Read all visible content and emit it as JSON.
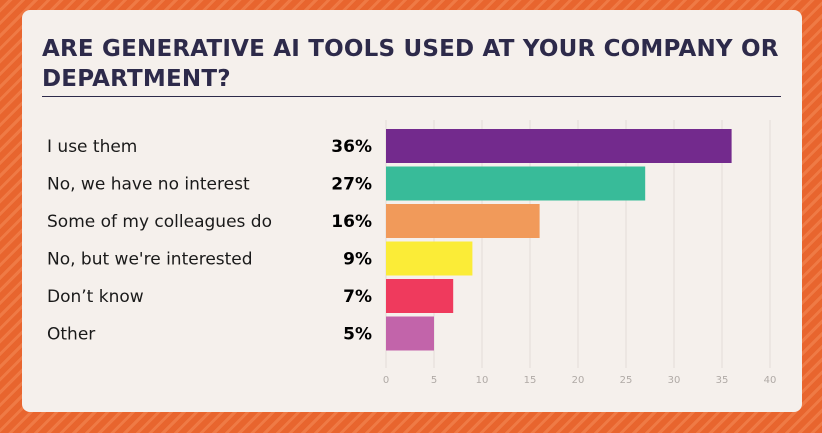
{
  "chart_data": {
    "type": "bar",
    "orientation": "horizontal",
    "title": "ARE GENERATIVE AI TOOLS USED AT YOUR COMPANY OR DEPARTMENT?",
    "categories": [
      "I use them",
      "No, we have no interest",
      "Some of my colleagues do",
      "No, but we're interested",
      "Don’t know",
      "Other"
    ],
    "values": [
      36,
      27,
      16,
      9,
      7,
      5
    ],
    "value_labels": [
      "36%",
      "27%",
      "16%",
      "9%",
      "7%",
      "5%"
    ],
    "colors": [
      "#732a8d",
      "#38bb99",
      "#f19a5a",
      "#fbec37",
      "#ef3a5d",
      "#c264aa"
    ],
    "xlim": [
      0,
      40
    ],
    "xticks": [
      0,
      5,
      10,
      15,
      20,
      25,
      30,
      35,
      40
    ],
    "grid": true
  }
}
